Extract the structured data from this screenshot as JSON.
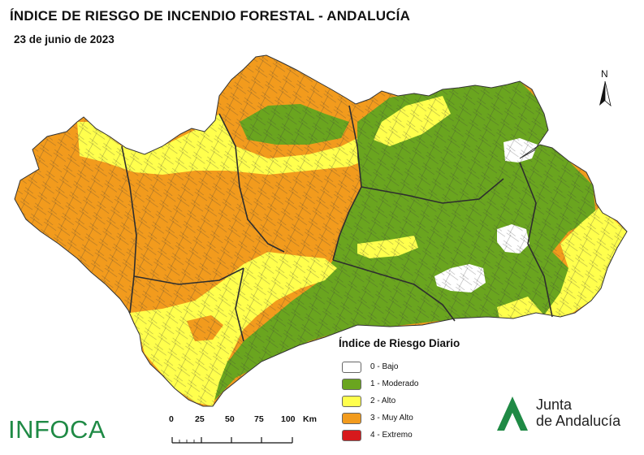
{
  "title": "ÍNDICE DE RIESGO DE INCENDIO FORESTAL - ANDALUCÍA",
  "date": "23 de junio de 2023",
  "north_arrow": {
    "label": "N",
    "icon": "north-arrow-icon"
  },
  "legend": {
    "title": "Índice de Riesgo Diario",
    "items": [
      {
        "label": "0 - Bajo",
        "color": "#ffffff"
      },
      {
        "label": "1 - Moderado",
        "color": "#6aa51f"
      },
      {
        "label": "2 - Alto",
        "color": "#ffff4d"
      },
      {
        "label": "3 - Muy Alto",
        "color": "#f29b1d"
      },
      {
        "label": "4 - Extremo",
        "color": "#d7191c"
      }
    ]
  },
  "scale": {
    "ticks": [
      "0",
      "25",
      "50",
      "75",
      "100"
    ],
    "unit": "Km"
  },
  "infoca_logo": "INFOCA",
  "junta_logo": {
    "line1": "Junta",
    "line2": "de Andalucía"
  },
  "colors": {
    "muy_alto": "#f29b1d",
    "alto": "#ffff4d",
    "moderado": "#6aa51f",
    "bajo": "#ffffff",
    "extremo": "#d7191c",
    "infoca_green": "#1f8a45"
  }
}
